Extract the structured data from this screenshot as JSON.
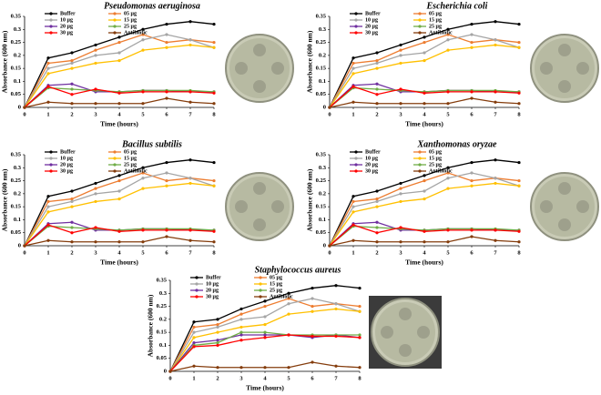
{
  "chart_data": [
    {
      "type": "line",
      "title": "Pseudomonas aeruginosa",
      "x_label": "Time (hours)",
      "y_label": "Absorbance (600 nm)",
      "x": [
        0,
        1,
        2,
        3,
        4,
        5,
        6,
        7,
        8
      ],
      "xlim": [
        0,
        8
      ],
      "xticks": [
        0,
        1,
        2,
        3,
        4,
        5,
        6,
        7,
        8
      ],
      "ylim": [
        0,
        0.35
      ],
      "yticks": [
        0,
        0.05,
        0.1,
        0.15,
        0.2,
        0.25,
        0.3,
        0.35
      ],
      "series": [
        {
          "name": "Buffer",
          "color": "#000000",
          "values": [
            0,
            0.19,
            0.21,
            0.24,
            0.27,
            0.3,
            0.32,
            0.33,
            0.32
          ]
        },
        {
          "name": "05 µg",
          "color": "#ed7d31",
          "values": [
            0,
            0.17,
            0.18,
            0.22,
            0.25,
            0.28,
            0.25,
            0.26,
            0.25
          ]
        },
        {
          "name": "10 µg",
          "color": "#a5a5a5",
          "values": [
            0,
            0.15,
            0.17,
            0.2,
            0.21,
            0.26,
            0.28,
            0.26,
            0.23
          ]
        },
        {
          "name": "15 µg",
          "color": "#ffc000",
          "values": [
            0,
            0.13,
            0.15,
            0.17,
            0.18,
            0.22,
            0.23,
            0.24,
            0.23
          ]
        },
        {
          "name": "20 µg",
          "color": "#7030a0",
          "values": [
            0,
            0.085,
            0.09,
            0.06,
            0.06,
            0.065,
            0.065,
            0.06,
            0.06
          ]
        },
        {
          "name": "25 µg",
          "color": "#70ad47",
          "values": [
            0,
            0.075,
            0.07,
            0.065,
            0.06,
            0.065,
            0.065,
            0.065,
            0.06
          ]
        },
        {
          "name": "30 µg",
          "color": "#ff0000",
          "values": [
            0,
            0.08,
            0.05,
            0.07,
            0.055,
            0.06,
            0.06,
            0.06,
            0.055
          ]
        },
        {
          "name": "Antibiotic",
          "color": "#843c0c",
          "values": [
            0,
            0.02,
            0.015,
            0.015,
            0.015,
            0.015,
            0.035,
            0.02,
            0.015
          ]
        }
      ]
    },
    {
      "type": "line",
      "title": "Escherichia coli",
      "x_label": "Time (hours)",
      "y_label": "Absorbance (600 nm)",
      "x": [
        0,
        1,
        2,
        3,
        4,
        5,
        6,
        7,
        8
      ],
      "xlim": [
        0,
        8
      ],
      "xticks": [
        0,
        1,
        2,
        3,
        4,
        5,
        6,
        7,
        8
      ],
      "ylim": [
        0,
        0.35
      ],
      "yticks": [
        0,
        0.05,
        0.1,
        0.15,
        0.2,
        0.25,
        0.3,
        0.35
      ],
      "series": [
        {
          "name": "Buffer",
          "color": "#000000",
          "values": [
            0,
            0.19,
            0.21,
            0.24,
            0.27,
            0.3,
            0.32,
            0.33,
            0.32
          ]
        },
        {
          "name": "05 µg",
          "color": "#ed7d31",
          "values": [
            0,
            0.17,
            0.18,
            0.22,
            0.25,
            0.28,
            0.25,
            0.26,
            0.25
          ]
        },
        {
          "name": "10 µg",
          "color": "#a5a5a5",
          "values": [
            0,
            0.15,
            0.17,
            0.2,
            0.21,
            0.26,
            0.28,
            0.26,
            0.23
          ]
        },
        {
          "name": "15 µg",
          "color": "#ffc000",
          "values": [
            0,
            0.13,
            0.15,
            0.17,
            0.18,
            0.22,
            0.23,
            0.24,
            0.23
          ]
        },
        {
          "name": "20 µg",
          "color": "#7030a0",
          "values": [
            0,
            0.085,
            0.09,
            0.06,
            0.06,
            0.065,
            0.065,
            0.06,
            0.06
          ]
        },
        {
          "name": "25 µg",
          "color": "#70ad47",
          "values": [
            0,
            0.075,
            0.07,
            0.065,
            0.06,
            0.065,
            0.065,
            0.065,
            0.06
          ]
        },
        {
          "name": "30 µg",
          "color": "#ff0000",
          "values": [
            0,
            0.08,
            0.05,
            0.07,
            0.055,
            0.06,
            0.06,
            0.06,
            0.055
          ]
        },
        {
          "name": "Antibiotic",
          "color": "#843c0c",
          "values": [
            0,
            0.02,
            0.015,
            0.015,
            0.015,
            0.015,
            0.035,
            0.02,
            0.015
          ]
        }
      ]
    },
    {
      "type": "line",
      "title": "Bacillus subtilis",
      "x_label": "Time (hours)",
      "y_label": "Absorbance (600 nm)",
      "x": [
        0,
        1,
        2,
        3,
        4,
        5,
        6,
        7,
        8
      ],
      "xlim": [
        0,
        8
      ],
      "xticks": [
        0,
        1,
        2,
        3,
        4,
        5,
        6,
        7,
        8
      ],
      "ylim": [
        0,
        0.35
      ],
      "yticks": [
        0,
        0.05,
        0.1,
        0.15,
        0.2,
        0.25,
        0.3,
        0.35
      ],
      "series": [
        {
          "name": "Buffer",
          "color": "#000000",
          "values": [
            0,
            0.19,
            0.21,
            0.24,
            0.27,
            0.3,
            0.32,
            0.33,
            0.32
          ]
        },
        {
          "name": "05 µg",
          "color": "#ed7d31",
          "values": [
            0,
            0.17,
            0.18,
            0.22,
            0.25,
            0.28,
            0.25,
            0.26,
            0.25
          ]
        },
        {
          "name": "10 µg",
          "color": "#a5a5a5",
          "values": [
            0,
            0.15,
            0.17,
            0.2,
            0.21,
            0.26,
            0.28,
            0.26,
            0.23
          ]
        },
        {
          "name": "15 µg",
          "color": "#ffc000",
          "values": [
            0,
            0.13,
            0.15,
            0.17,
            0.18,
            0.22,
            0.23,
            0.24,
            0.23
          ]
        },
        {
          "name": "20 µg",
          "color": "#7030a0",
          "values": [
            0,
            0.085,
            0.09,
            0.06,
            0.06,
            0.065,
            0.065,
            0.06,
            0.06
          ]
        },
        {
          "name": "25 µg",
          "color": "#70ad47",
          "values": [
            0,
            0.075,
            0.07,
            0.065,
            0.06,
            0.065,
            0.065,
            0.065,
            0.06
          ]
        },
        {
          "name": "30 µg",
          "color": "#ff0000",
          "values": [
            0,
            0.08,
            0.05,
            0.07,
            0.055,
            0.06,
            0.06,
            0.06,
            0.055
          ]
        },
        {
          "name": "Antibiotic",
          "color": "#843c0c",
          "values": [
            0,
            0.02,
            0.015,
            0.015,
            0.015,
            0.015,
            0.035,
            0.02,
            0.015
          ]
        }
      ]
    },
    {
      "type": "line",
      "title": "Xanthomonas oryzae",
      "x_label": "Time (hours)",
      "y_label": "Absorbance (600 nm)",
      "x": [
        0,
        1,
        2,
        3,
        4,
        5,
        6,
        7,
        8
      ],
      "xlim": [
        0,
        8
      ],
      "xticks": [
        0,
        1,
        2,
        3,
        4,
        5,
        6,
        7,
        8
      ],
      "ylim": [
        0,
        0.35
      ],
      "yticks": [
        0,
        0.05,
        0.1,
        0.15,
        0.2,
        0.25,
        0.3,
        0.35
      ],
      "series": [
        {
          "name": "Buffer",
          "color": "#000000",
          "values": [
            0,
            0.19,
            0.21,
            0.24,
            0.27,
            0.3,
            0.32,
            0.33,
            0.32
          ]
        },
        {
          "name": "05 µg",
          "color": "#ed7d31",
          "values": [
            0,
            0.17,
            0.18,
            0.22,
            0.25,
            0.28,
            0.25,
            0.26,
            0.25
          ]
        },
        {
          "name": "10 µg",
          "color": "#a5a5a5",
          "values": [
            0,
            0.15,
            0.17,
            0.2,
            0.21,
            0.26,
            0.28,
            0.26,
            0.23
          ]
        },
        {
          "name": "15 µg",
          "color": "#ffc000",
          "values": [
            0,
            0.13,
            0.15,
            0.17,
            0.18,
            0.22,
            0.23,
            0.24,
            0.23
          ]
        },
        {
          "name": "20 µg",
          "color": "#7030a0",
          "values": [
            0,
            0.085,
            0.09,
            0.06,
            0.06,
            0.065,
            0.065,
            0.06,
            0.06
          ]
        },
        {
          "name": "25 µg",
          "color": "#70ad47",
          "values": [
            0,
            0.075,
            0.07,
            0.065,
            0.06,
            0.065,
            0.065,
            0.065,
            0.06
          ]
        },
        {
          "name": "30 µg",
          "color": "#ff0000",
          "values": [
            0,
            0.08,
            0.05,
            0.07,
            0.055,
            0.06,
            0.06,
            0.06,
            0.055
          ]
        },
        {
          "name": "Antibiotic",
          "color": "#843c0c",
          "values": [
            0,
            0.02,
            0.015,
            0.015,
            0.015,
            0.015,
            0.035,
            0.02,
            0.015
          ]
        }
      ]
    },
    {
      "type": "line",
      "title": "Staphylococcus aureus",
      "x_label": "Time (hours)",
      "y_label": "Absorbance (600 nm)",
      "x": [
        0,
        1,
        2,
        3,
        4,
        5,
        6,
        7,
        8
      ],
      "xlim": [
        0,
        8
      ],
      "xticks": [
        0,
        1,
        2,
        3,
        4,
        5,
        6,
        7,
        8
      ],
      "ylim": [
        0,
        0.35
      ],
      "yticks": [
        0,
        0.05,
        0.1,
        0.15,
        0.2,
        0.25,
        0.3,
        0.35
      ],
      "series": [
        {
          "name": "Buffer",
          "color": "#000000",
          "values": [
            0,
            0.19,
            0.2,
            0.24,
            0.27,
            0.3,
            0.32,
            0.33,
            0.32
          ]
        },
        {
          "name": "05 µg",
          "color": "#ed7d31",
          "values": [
            0,
            0.17,
            0.18,
            0.22,
            0.25,
            0.28,
            0.25,
            0.26,
            0.25
          ]
        },
        {
          "name": "10 µg",
          "color": "#a5a5a5",
          "values": [
            0,
            0.15,
            0.17,
            0.2,
            0.21,
            0.26,
            0.28,
            0.26,
            0.23
          ]
        },
        {
          "name": "15 µg",
          "color": "#ffc000",
          "values": [
            0,
            0.13,
            0.15,
            0.17,
            0.18,
            0.22,
            0.23,
            0.24,
            0.23
          ]
        },
        {
          "name": "20 µg",
          "color": "#7030a0",
          "values": [
            0,
            0.11,
            0.12,
            0.14,
            0.14,
            0.14,
            0.13,
            0.14,
            0.13
          ]
        },
        {
          "name": "25 µg",
          "color": "#70ad47",
          "values": [
            0,
            0.1,
            0.11,
            0.15,
            0.15,
            0.14,
            0.14,
            0.14,
            0.14
          ]
        },
        {
          "name": "30 µg",
          "color": "#ff0000",
          "values": [
            0,
            0.095,
            0.1,
            0.12,
            0.13,
            0.14,
            0.135,
            0.135,
            0.13
          ]
        },
        {
          "name": "Antibiotic",
          "color": "#843c0c",
          "values": [
            0,
            0.02,
            0.015,
            0.015,
            0.015,
            0.015,
            0.035,
            0.02,
            0.015
          ]
        }
      ]
    }
  ]
}
